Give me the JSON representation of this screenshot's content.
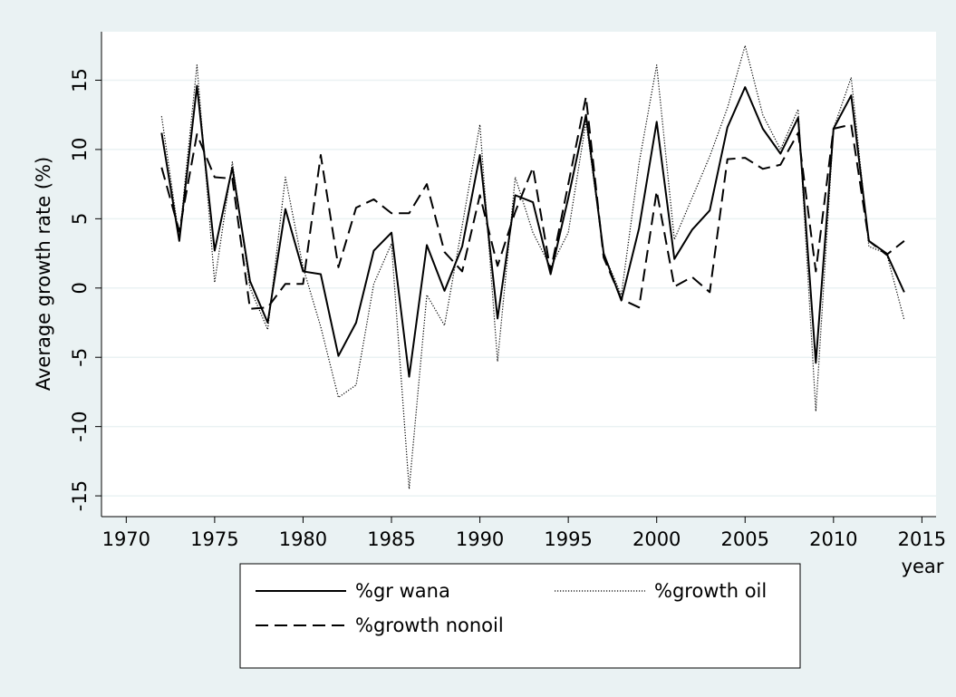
{
  "chart_data": {
    "type": "line",
    "x_label": "year",
    "y_label": "Average growth rate (%)",
    "x": [
      1972,
      1973,
      1974,
      1975,
      1976,
      1977,
      1978,
      1979,
      1980,
      1981,
      1982,
      1983,
      1984,
      1985,
      1986,
      1987,
      1988,
      1989,
      1990,
      1991,
      1992,
      1993,
      1994,
      1995,
      1996,
      1997,
      1998,
      1999,
      2000,
      2001,
      2002,
      2003,
      2004,
      2005,
      2006,
      2007,
      2008,
      2009,
      2010,
      2011,
      2012,
      2013,
      2014
    ],
    "series": [
      {
        "name": "%gr wana",
        "color": "#000000",
        "style": "solid",
        "values": [
          11.2,
          3.4,
          14.6,
          2.7,
          8.7,
          0.5,
          -2.5,
          5.7,
          1.2,
          1.0,
          -4.9,
          -2.5,
          2.7,
          4.0,
          -6.4,
          3.1,
          -0.2,
          3.0,
          9.6,
          -2.2,
          6.7,
          6.2,
          1.0,
          6.5,
          12.5,
          2.5,
          -0.9,
          4.3,
          12.0,
          2.1,
          4.2,
          5.6,
          11.6,
          14.5,
          11.5,
          9.7,
          12.3,
          -5.4,
          11.5,
          13.9,
          3.4,
          2.5,
          -0.3
        ]
      },
      {
        "name": "%growth oil",
        "color": "#000000",
        "style": "dotted",
        "values": [
          12.4,
          3.6,
          16.1,
          0.4,
          9.1,
          0.0,
          -3.0,
          8.0,
          1.5,
          -2.8,
          -7.9,
          -7.0,
          0.3,
          3.2,
          -14.5,
          -0.5,
          -2.7,
          4.5,
          11.8,
          -5.3,
          8.0,
          4.0,
          1.5,
          4.0,
          12.0,
          2.5,
          -0.5,
          9.0,
          16.1,
          3.5,
          6.5,
          9.5,
          13.0,
          17.5,
          12.5,
          10.0,
          12.9,
          -8.9,
          11.5,
          15.2,
          3.0,
          2.5,
          -2.3
        ]
      },
      {
        "name": "%growth nonoil",
        "color": "#000000",
        "style": "dashed",
        "values": [
          8.7,
          4.1,
          11.1,
          8.0,
          7.9,
          -1.5,
          -1.4,
          0.3,
          0.3,
          9.6,
          1.5,
          5.8,
          6.4,
          5.4,
          5.4,
          7.5,
          2.6,
          1.2,
          6.7,
          1.6,
          5.5,
          8.7,
          1.2,
          7.5,
          13.8,
          2.2,
          -0.8,
          -1.4,
          7.0,
          0.1,
          0.8,
          -0.3,
          9.3,
          9.4,
          8.6,
          8.9,
          11.2,
          1.2,
          11.5,
          11.8,
          3.4,
          2.4,
          3.4
        ]
      }
    ],
    "xlim": [
      1968.6,
      2015.8
    ],
    "xticks": [
      1970,
      1975,
      1980,
      1985,
      1990,
      1995,
      2000,
      2005,
      2010,
      2015
    ],
    "ylim": [
      -16.5,
      18.5
    ],
    "yticks": [
      -15,
      -10,
      -5,
      0,
      5,
      10,
      15
    ],
    "grid": true,
    "legend_position": "bottom"
  }
}
